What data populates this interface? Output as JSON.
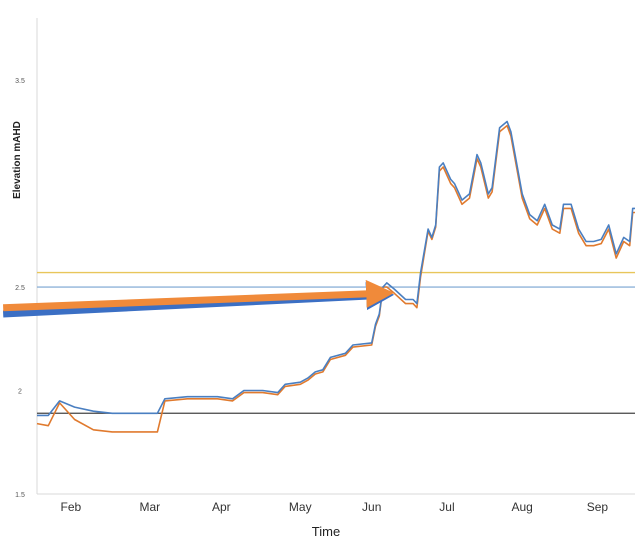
{
  "chart_data": {
    "type": "line",
    "title": "",
    "xlabel": "Time",
    "ylabel": "Elevation mAHD",
    "ylim": [
      1.5,
      3.8
    ],
    "y_ticks": [
      "1.5",
      "2",
      "2.5",
      "3.5"
    ],
    "x_ticks": [
      {
        "label": "Feb",
        "month": 2.45
      },
      {
        "label": "Mar",
        "month": 3.5
      },
      {
        "label": "Apr",
        "month": 4.45
      },
      {
        "label": "May",
        "month": 5.5
      },
      {
        "label": "Jun",
        "month": 6.45
      },
      {
        "label": "Jul",
        "month": 7.45
      },
      {
        "label": "Aug",
        "month": 8.45
      },
      {
        "label": "Sep",
        "month": 9.45
      }
    ],
    "xlim": [
      2.0,
      9.95
    ],
    "series": [
      {
        "color": "#4a7fc1",
        "points": [
          [
            2.0,
            1.88
          ],
          [
            2.15,
            1.88
          ],
          [
            2.3,
            1.95
          ],
          [
            2.5,
            1.92
          ],
          [
            2.75,
            1.9
          ],
          [
            3.0,
            1.89
          ],
          [
            3.5,
            1.89
          ],
          [
            3.6,
            1.89
          ],
          [
            3.7,
            1.96
          ],
          [
            4.0,
            1.97
          ],
          [
            4.4,
            1.97
          ],
          [
            4.6,
            1.96
          ],
          [
            4.75,
            2.0
          ],
          [
            5.0,
            2.0
          ],
          [
            5.2,
            1.99
          ],
          [
            5.3,
            2.03
          ],
          [
            5.5,
            2.04
          ],
          [
            5.6,
            2.06
          ],
          [
            5.7,
            2.09
          ],
          [
            5.8,
            2.1
          ],
          [
            5.9,
            2.16
          ],
          [
            6.1,
            2.18
          ],
          [
            6.2,
            2.22
          ],
          [
            6.45,
            2.23
          ],
          [
            6.5,
            2.32
          ],
          [
            6.55,
            2.37
          ],
          [
            6.6,
            2.5
          ],
          [
            6.65,
            2.52
          ],
          [
            6.75,
            2.49
          ],
          [
            6.9,
            2.44
          ],
          [
            7.0,
            2.44
          ],
          [
            7.05,
            2.42
          ],
          [
            7.1,
            2.57
          ],
          [
            7.2,
            2.78
          ],
          [
            7.25,
            2.74
          ],
          [
            7.3,
            2.8
          ],
          [
            7.35,
            3.08
          ],
          [
            7.4,
            3.1
          ],
          [
            7.5,
            3.02
          ],
          [
            7.55,
            3.0
          ],
          [
            7.65,
            2.92
          ],
          [
            7.75,
            2.95
          ],
          [
            7.85,
            3.14
          ],
          [
            7.9,
            3.1
          ],
          [
            8.0,
            2.95
          ],
          [
            8.05,
            2.98
          ],
          [
            8.15,
            3.27
          ],
          [
            8.25,
            3.3
          ],
          [
            8.3,
            3.25
          ],
          [
            8.45,
            2.95
          ],
          [
            8.55,
            2.85
          ],
          [
            8.65,
            2.82
          ],
          [
            8.75,
            2.9
          ],
          [
            8.85,
            2.8
          ],
          [
            8.95,
            2.78
          ],
          [
            9.0,
            2.9
          ],
          [
            9.1,
            2.9
          ],
          [
            9.2,
            2.78
          ],
          [
            9.3,
            2.72
          ],
          [
            9.4,
            2.72
          ],
          [
            9.5,
            2.73
          ],
          [
            9.6,
            2.8
          ],
          [
            9.7,
            2.66
          ],
          [
            9.8,
            2.74
          ],
          [
            9.88,
            2.72
          ],
          [
            9.92,
            2.88
          ],
          [
            9.95,
            2.88
          ]
        ]
      },
      {
        "color": "#e07a2e",
        "points": [
          [
            2.0,
            1.84
          ],
          [
            2.15,
            1.83
          ],
          [
            2.3,
            1.94
          ],
          [
            2.5,
            1.86
          ],
          [
            2.75,
            1.81
          ],
          [
            3.0,
            1.8
          ],
          [
            3.5,
            1.8
          ],
          [
            3.6,
            1.8
          ],
          [
            3.7,
            1.95
          ],
          [
            4.0,
            1.96
          ],
          [
            4.4,
            1.96
          ],
          [
            4.6,
            1.95
          ],
          [
            4.75,
            1.99
          ],
          [
            5.0,
            1.99
          ],
          [
            5.2,
            1.98
          ],
          [
            5.3,
            2.02
          ],
          [
            5.5,
            2.03
          ],
          [
            5.6,
            2.05
          ],
          [
            5.7,
            2.08
          ],
          [
            5.8,
            2.09
          ],
          [
            5.9,
            2.15
          ],
          [
            6.1,
            2.17
          ],
          [
            6.2,
            2.21
          ],
          [
            6.45,
            2.22
          ],
          [
            6.5,
            2.31
          ],
          [
            6.55,
            2.36
          ],
          [
            6.6,
            2.5
          ],
          [
            6.65,
            2.5
          ],
          [
            6.75,
            2.47
          ],
          [
            6.9,
            2.42
          ],
          [
            7.0,
            2.42
          ],
          [
            7.05,
            2.4
          ],
          [
            7.1,
            2.55
          ],
          [
            7.2,
            2.77
          ],
          [
            7.25,
            2.73
          ],
          [
            7.3,
            2.79
          ],
          [
            7.35,
            3.06
          ],
          [
            7.4,
            3.08
          ],
          [
            7.5,
            3.0
          ],
          [
            7.55,
            2.98
          ],
          [
            7.65,
            2.9
          ],
          [
            7.75,
            2.93
          ],
          [
            7.85,
            3.12
          ],
          [
            7.9,
            3.08
          ],
          [
            8.0,
            2.93
          ],
          [
            8.05,
            2.96
          ],
          [
            8.15,
            3.25
          ],
          [
            8.25,
            3.28
          ],
          [
            8.3,
            3.23
          ],
          [
            8.45,
            2.93
          ],
          [
            8.55,
            2.83
          ],
          [
            8.65,
            2.8
          ],
          [
            8.75,
            2.88
          ],
          [
            8.85,
            2.78
          ],
          [
            8.95,
            2.76
          ],
          [
            9.0,
            2.88
          ],
          [
            9.1,
            2.88
          ],
          [
            9.2,
            2.76
          ],
          [
            9.3,
            2.7
          ],
          [
            9.4,
            2.7
          ],
          [
            9.5,
            2.71
          ],
          [
            9.6,
            2.78
          ],
          [
            9.7,
            2.64
          ],
          [
            9.8,
            2.72
          ],
          [
            9.88,
            2.7
          ],
          [
            9.92,
            2.86
          ],
          [
            9.95,
            2.86
          ]
        ]
      }
    ],
    "reference_lines": [
      {
        "y": 1.89,
        "color": "#444444"
      },
      {
        "y": 2.5,
        "color": "#8fb3d9"
      },
      {
        "y": 2.57,
        "color": "#e8c65a"
      }
    ],
    "arrows": [
      {
        "from": [
          1.55,
          2.37
        ],
        "to": [
          6.6,
          2.46
        ],
        "color": "#3b6fc4"
      },
      {
        "from": [
          1.55,
          2.4
        ],
        "to": [
          6.6,
          2.47
        ],
        "color": "#f08a3a"
      }
    ],
    "grid": false,
    "legend": "none"
  }
}
